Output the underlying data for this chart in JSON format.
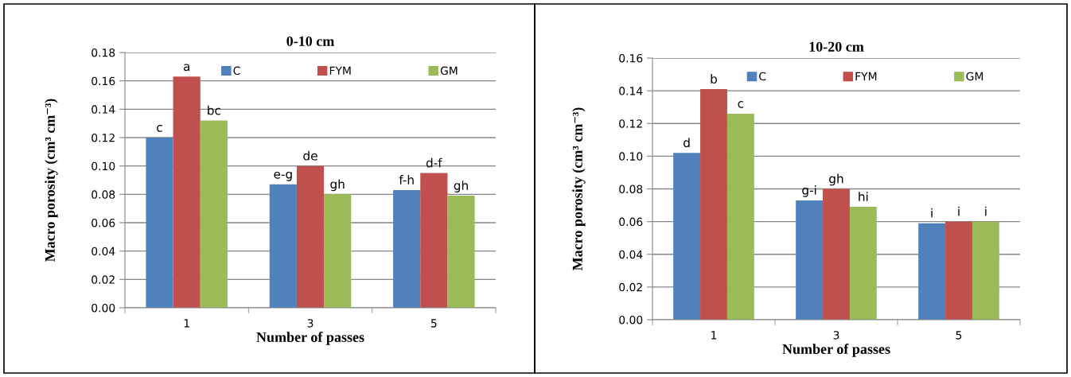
{
  "chart_data": [
    {
      "type": "bar",
      "title": "0-10 cm",
      "xlabel": "Number of passes",
      "ylabel": "Macro porosity (cm³ cm⁻³)",
      "categories": [
        "1",
        "3",
        "5"
      ],
      "ylim": [
        0,
        0.18
      ],
      "yticks": [
        {
          "value": 0,
          "label": "0.00"
        },
        {
          "value": 0.02,
          "label": "0.02"
        },
        {
          "value": 0.04,
          "label": "0.04"
        },
        {
          "value": 0.06,
          "label": "0.06"
        },
        {
          "value": 0.08,
          "label": "0.08"
        },
        {
          "value": 0.1,
          "label": "0.10"
        },
        {
          "value": 0.12,
          "label": "0.12"
        },
        {
          "value": 0.14,
          "label": "0.14"
        },
        {
          "value": 0.16,
          "label": "0.16"
        },
        {
          "value": 0.18,
          "label": "0.18"
        }
      ],
      "grid": "y",
      "legend": "top",
      "series": [
        {
          "name": "C",
          "color": "#4f81bd",
          "values": [
            0.12,
            0.087,
            0.083
          ],
          "value_labels": [
            "c",
            "e-g",
            "f-h"
          ]
        },
        {
          "name": "FYM",
          "color": "#c0504d",
          "values": [
            0.163,
            0.1,
            0.095
          ],
          "value_labels": [
            "a",
            "de",
            "d-f"
          ]
        },
        {
          "name": "GM",
          "color": "#9bbb59",
          "values": [
            0.132,
            0.08,
            0.079
          ],
          "value_labels": [
            "bc",
            "gh",
            "gh"
          ]
        }
      ]
    },
    {
      "type": "bar",
      "title": "10-20 cm",
      "xlabel": "Number of passes",
      "ylabel": "Macro porosity (cm³ cm⁻³)",
      "categories": [
        "1",
        "3",
        "5"
      ],
      "ylim": [
        0,
        0.16
      ],
      "yticks": [
        {
          "value": 0,
          "label": "0.00"
        },
        {
          "value": 0.02,
          "label": "0.02"
        },
        {
          "value": 0.04,
          "label": "0.04"
        },
        {
          "value": 0.06,
          "label": "0.06"
        },
        {
          "value": 0.08,
          "label": "0.08"
        },
        {
          "value": 0.1,
          "label": "0.10"
        },
        {
          "value": 0.12,
          "label": "0.12"
        },
        {
          "value": 0.14,
          "label": "0.14"
        },
        {
          "value": 0.16,
          "label": "0.16"
        }
      ],
      "grid": "y",
      "legend": "top",
      "series": [
        {
          "name": "C",
          "color": "#4f81bd",
          "values": [
            0.102,
            0.073,
            0.059
          ],
          "value_labels": [
            "d",
            "g-i",
            "i"
          ]
        },
        {
          "name": "FYM",
          "color": "#c0504d",
          "values": [
            0.141,
            0.08,
            0.06
          ],
          "value_labels": [
            "b",
            "gh",
            "i"
          ]
        },
        {
          "name": "GM",
          "color": "#9bbb59",
          "values": [
            0.126,
            0.069,
            0.06
          ],
          "value_labels": [
            "c",
            "hi",
            "i"
          ]
        }
      ]
    }
  ]
}
